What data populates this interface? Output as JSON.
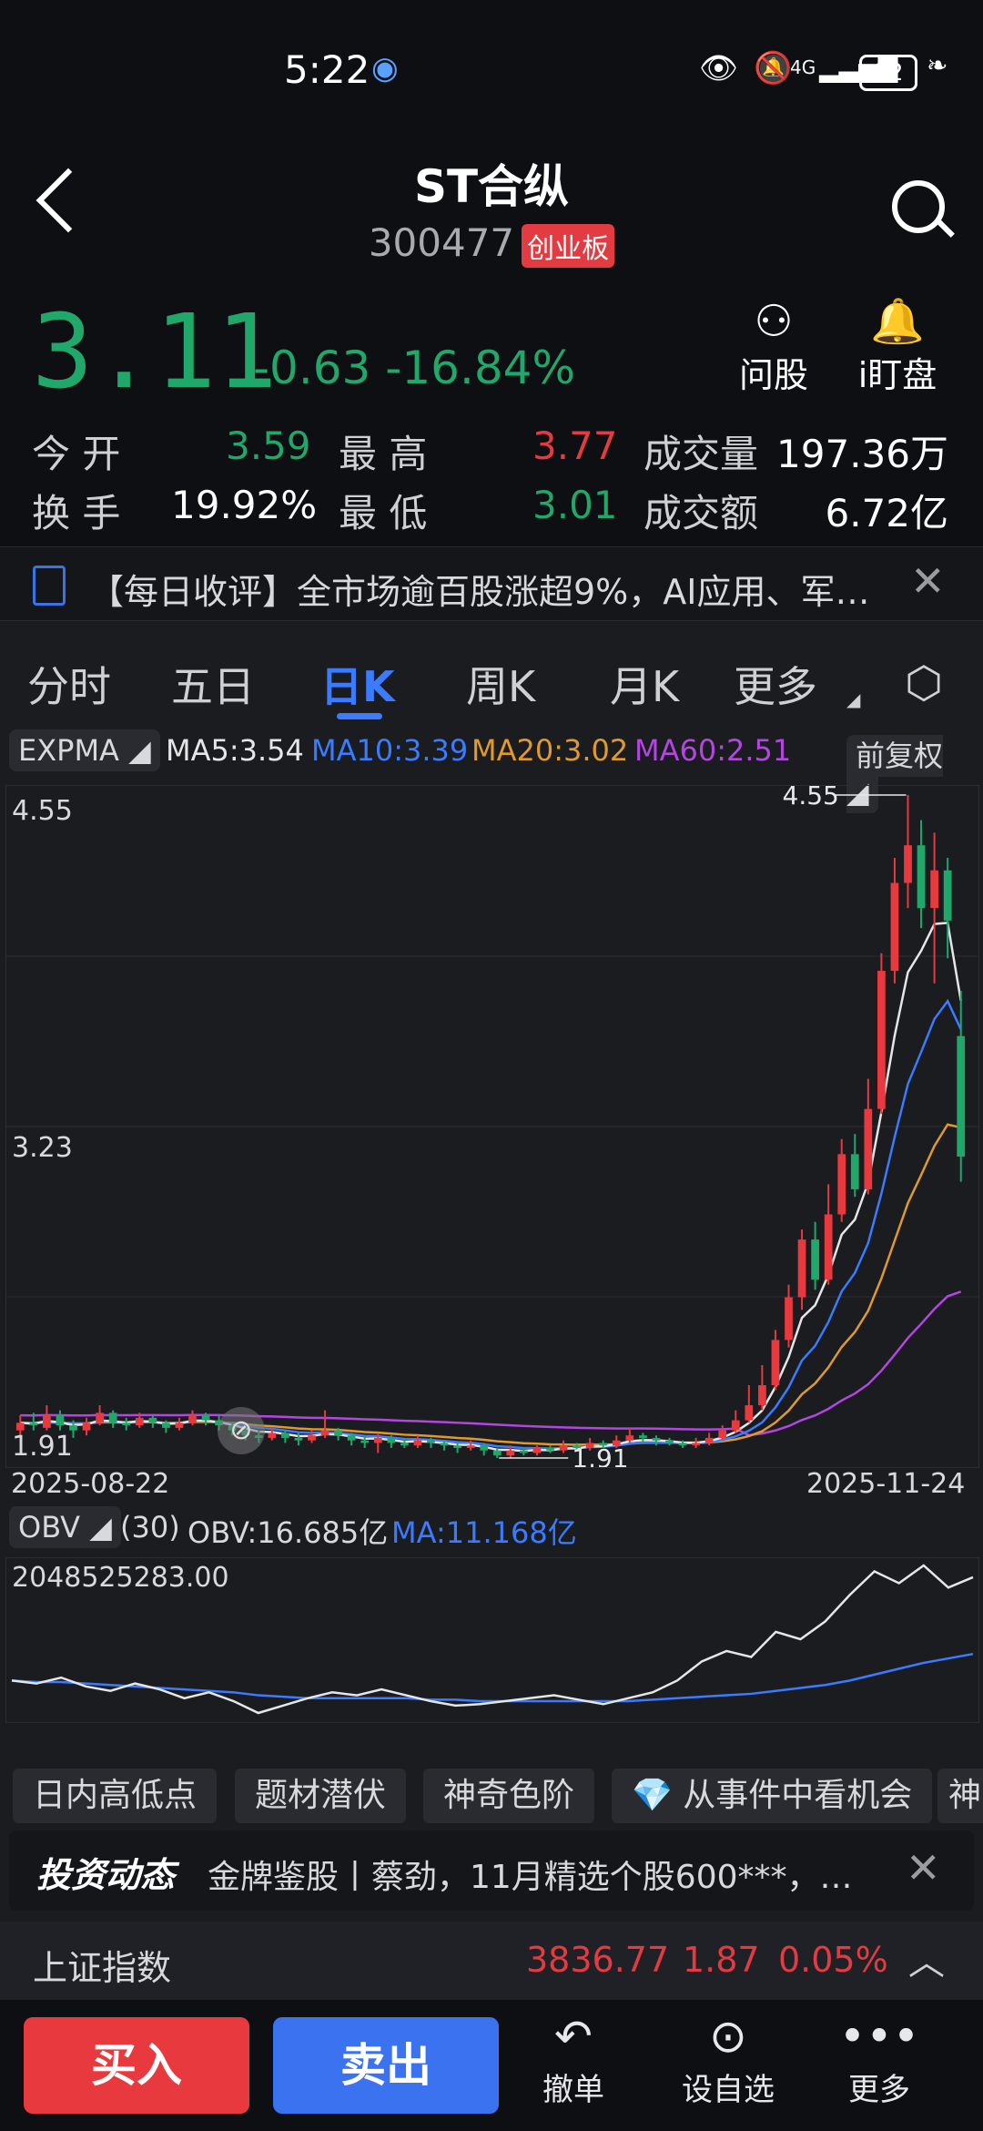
{
  "status_bar": {
    "time": "5:22",
    "battery": "82",
    "network": "4G"
  },
  "header": {
    "title": "ST合纵",
    "code": "300477",
    "board": "创业板"
  },
  "quote": {
    "price": "3.11",
    "change": "-0.63",
    "change_pct": "-16.84%",
    "actions": [
      {
        "label": "问股",
        "icon": "person-icon"
      },
      {
        "label": "i盯盘",
        "icon": "bell-icon"
      }
    ],
    "open_label": "今  开",
    "open": "3.59",
    "high_label": "最  高",
    "high": "3.77",
    "volume_label": "成交量",
    "volume": "197.36万",
    "turnover_label": "换  手",
    "turnover": "19.92%",
    "low_label": "最  低",
    "low": "3.01",
    "amount_label": "成交额",
    "amount": "6.72亿"
  },
  "news": {
    "text": "【每日收评】全市场逾百股涨超9%，AI应用、军…"
  },
  "tabs": [
    "分时",
    "五日",
    "日K",
    "周K",
    "月K",
    "更多"
  ],
  "active_tab": "日K",
  "indicators": {
    "main": "EXPMA",
    "ma5": "MA5:3.54",
    "ma10": "MA10:3.39",
    "ma20": "MA20:3.02",
    "ma60": "MA60:2.51",
    "adjust": "前复权",
    "colors": {
      "ma5": "#e6e6e6",
      "ma10": "#3a7bff",
      "ma20": "#e09a2b",
      "ma60": "#b346e0"
    }
  },
  "chart_data": {
    "type": "candlestick",
    "y_axis_labels": [
      "4.55",
      "3.23",
      "1.91"
    ],
    "start_date": "2025-08-22",
    "end_date": "2025-11-24",
    "max_marker": "4.55",
    "min_marker": "1.91",
    "ylim": [
      1.91,
      4.55
    ],
    "candles": [
      [
        2.02,
        2.05,
        2.08,
        2.0
      ],
      [
        2.05,
        2.04,
        2.09,
        2.02
      ],
      [
        2.03,
        2.08,
        2.12,
        2.02
      ],
      [
        2.08,
        2.04,
        2.1,
        2.02
      ],
      [
        2.04,
        2.02,
        2.06,
        1.99
      ],
      [
        2.02,
        2.05,
        2.07,
        2.0
      ],
      [
        2.05,
        2.09,
        2.12,
        2.04
      ],
      [
        2.09,
        2.05,
        2.1,
        2.03
      ],
      [
        2.05,
        2.04,
        2.07,
        2.02
      ],
      [
        2.04,
        2.07,
        2.09,
        2.03
      ],
      [
        2.07,
        2.05,
        2.08,
        2.03
      ],
      [
        2.05,
        2.03,
        2.06,
        2.01
      ],
      [
        2.03,
        2.05,
        2.07,
        2.02
      ],
      [
        2.05,
        2.08,
        2.1,
        2.04
      ],
      [
        2.08,
        2.06,
        2.09,
        2.04
      ],
      [
        2.06,
        2.04,
        2.08,
        2.02
      ],
      [
        2.04,
        2.02,
        2.05,
        2.0
      ],
      [
        2.02,
        2.0,
        2.03,
        1.98
      ],
      [
        2.0,
        1.99,
        2.02,
        1.97
      ],
      [
        1.99,
        2.01,
        2.03,
        1.98
      ],
      [
        2.01,
        1.99,
        2.02,
        1.97
      ],
      [
        1.99,
        1.98,
        2.01,
        1.96
      ],
      [
        1.98,
        2.0,
        2.02,
        1.97
      ],
      [
        2.0,
        2.02,
        2.1,
        1.99
      ],
      [
        2.02,
        2.0,
        2.03,
        1.98
      ],
      [
        2.0,
        1.98,
        2.01,
        1.96
      ],
      [
        1.98,
        1.97,
        2.0,
        1.95
      ],
      [
        1.97,
        1.99,
        2.01,
        1.93
      ],
      [
        1.99,
        1.97,
        2.0,
        1.95
      ],
      [
        1.97,
        1.96,
        1.99,
        1.95
      ],
      [
        1.96,
        1.98,
        2.0,
        1.95
      ],
      [
        1.98,
        1.97,
        1.99,
        1.95
      ],
      [
        1.97,
        1.96,
        1.98,
        1.94
      ],
      [
        1.96,
        1.95,
        1.97,
        1.93
      ],
      [
        1.95,
        1.96,
        1.98,
        1.94
      ],
      [
        1.96,
        1.94,
        1.97,
        1.92
      ],
      [
        1.94,
        1.92,
        1.95,
        1.91
      ],
      [
        1.92,
        1.94,
        1.96,
        1.91
      ],
      [
        1.94,
        1.93,
        1.95,
        1.92
      ],
      [
        1.93,
        1.95,
        1.96,
        1.92
      ],
      [
        1.95,
        1.94,
        1.96,
        1.93
      ],
      [
        1.94,
        1.96,
        1.98,
        1.93
      ],
      [
        1.96,
        1.95,
        1.97,
        1.94
      ],
      [
        1.95,
        1.97,
        1.99,
        1.94
      ],
      [
        1.97,
        1.96,
        1.98,
        1.95
      ],
      [
        1.96,
        1.98,
        2.0,
        1.95
      ],
      [
        1.98,
        2.0,
        2.03,
        1.97
      ],
      [
        2.0,
        1.99,
        2.01,
        1.97
      ],
      [
        1.99,
        1.98,
        2.0,
        1.96
      ],
      [
        1.98,
        1.97,
        1.99,
        1.96
      ],
      [
        1.97,
        1.96,
        1.98,
        1.95
      ],
      [
        1.96,
        1.97,
        1.99,
        1.95
      ],
      [
        1.97,
        1.99,
        2.01,
        1.96
      ],
      [
        1.99,
        2.02,
        2.04,
        1.98
      ],
      [
        2.02,
        2.06,
        2.1,
        2.01
      ],
      [
        2.06,
        2.12,
        2.2,
        2.05
      ],
      [
        2.12,
        2.2,
        2.28,
        2.1
      ],
      [
        2.2,
        2.38,
        2.42,
        2.18
      ],
      [
        2.38,
        2.55,
        2.6,
        2.35
      ],
      [
        2.55,
        2.78,
        2.82,
        2.5
      ],
      [
        2.78,
        2.62,
        2.85,
        2.58
      ],
      [
        2.62,
        2.88,
        3.0,
        2.6
      ],
      [
        2.88,
        3.12,
        3.18,
        2.85
      ],
      [
        3.12,
        2.98,
        3.2,
        2.95
      ],
      [
        2.98,
        3.3,
        3.42,
        2.96
      ],
      [
        3.3,
        3.85,
        3.92,
        3.28
      ],
      [
        3.85,
        4.2,
        4.3,
        3.8
      ],
      [
        4.2,
        4.35,
        4.55,
        4.1
      ],
      [
        4.35,
        4.1,
        4.45,
        4.02
      ],
      [
        4.1,
        4.25,
        4.4,
        3.8
      ],
      [
        4.25,
        4.05,
        4.3,
        3.9
      ],
      [
        3.59,
        3.11,
        3.77,
        3.01
      ]
    ]
  },
  "obv": {
    "label": "OBV",
    "period": "(30)",
    "value": "OBV:16.685亿",
    "ma": "MA:11.168亿",
    "max_label": "2048525283.00",
    "series": [
      0.22,
      0.2,
      0.24,
      0.18,
      0.15,
      0.2,
      0.16,
      0.1,
      0.14,
      0.08,
      0.0,
      0.05,
      0.1,
      0.14,
      0.12,
      0.16,
      0.12,
      0.08,
      0.05,
      0.06,
      0.08,
      0.1,
      0.12,
      0.09,
      0.06,
      0.1,
      0.14,
      0.22,
      0.35,
      0.42,
      0.38,
      0.55,
      0.5,
      0.62,
      0.8,
      0.96,
      0.88,
      1.0,
      0.85,
      0.92
    ],
    "ma_series": [
      0.22,
      0.21,
      0.21,
      0.2,
      0.19,
      0.18,
      0.17,
      0.16,
      0.15,
      0.14,
      0.12,
      0.11,
      0.1,
      0.1,
      0.1,
      0.1,
      0.1,
      0.09,
      0.09,
      0.08,
      0.08,
      0.08,
      0.08,
      0.08,
      0.08,
      0.08,
      0.09,
      0.1,
      0.11,
      0.12,
      0.13,
      0.15,
      0.17,
      0.19,
      0.22,
      0.26,
      0.3,
      0.34,
      0.37,
      0.4
    ]
  },
  "chips": [
    "日内高低点",
    "题材潜伏",
    "神奇色阶",
    "从事件中看机会",
    "神"
  ],
  "invest": {
    "brand": "投资动态",
    "text": "金牌鉴股丨蔡劲，11月精选个股600***，…"
  },
  "index": {
    "name": "上证指数",
    "value": "3836.77",
    "change": "1.87",
    "pct": "0.05%"
  },
  "bottom": {
    "buy": "买入",
    "sell": "卖出",
    "tools": [
      "撤单",
      "设自选",
      "更多"
    ]
  }
}
